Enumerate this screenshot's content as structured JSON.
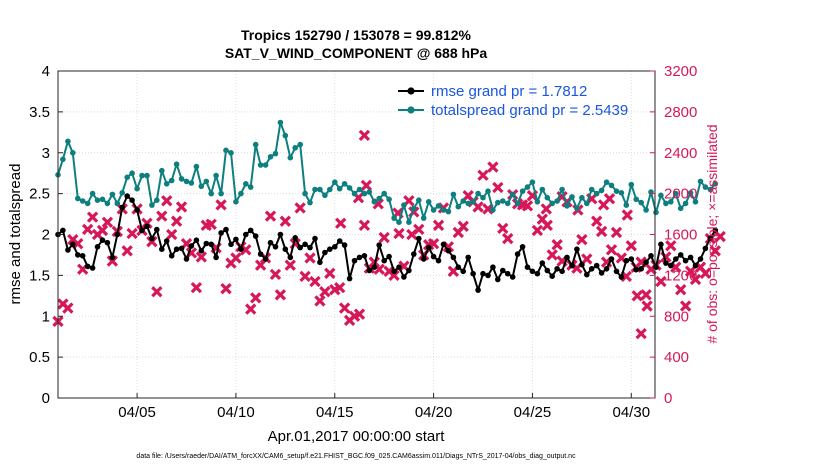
{
  "chart_data": {
    "type": "line",
    "title": "Tropics 152790 / 153078 = 99.812%",
    "subtitle": "SAT_V_WIND_COMPONENT @ 688 hPa",
    "xlabel": "Apr.01,2017 00:00:00 start",
    "ylabel": "rmse and totalspread",
    "y2label": "# of obs: o=possible; ×=assimilated",
    "footnote": "data file: /Users/raeder/DAI/ATM_forcXX/CAM6_setup/f.e21.FHIST_BGC.f09_025.CAM6assim.011/Diags_NTrS_2017-04/obs_diag_output.nc",
    "x_range_days": [
      1,
      31.2
    ],
    "xticks": [
      {
        "day": 5,
        "label": "04/05"
      },
      {
        "day": 10,
        "label": "04/10"
      },
      {
        "day": 15,
        "label": "04/15"
      },
      {
        "day": 20,
        "label": "04/20"
      },
      {
        "day": 25,
        "label": "04/25"
      },
      {
        "day": 30,
        "label": "04/30"
      }
    ],
    "ylim": [
      0,
      4
    ],
    "yticks": [
      "0",
      "0.5",
      "1",
      "1.5",
      "2",
      "2.5",
      "3",
      "3.5",
      "4"
    ],
    "y2lim": [
      0,
      3200
    ],
    "y2ticks": [
      "0",
      "400",
      "800",
      "1200",
      "1600",
      "2000",
      "2400",
      "2800",
      "3200"
    ],
    "grid": true,
    "legend_position": "top-right",
    "colors": {
      "rmse": "#000000",
      "spread": "#0e7f7f",
      "obs": "#d6185a",
      "legend_text": "#1a56e0"
    },
    "time_step_days": 0.25,
    "series": [
      {
        "name": "rmse grand pr = 1.7812",
        "axis": "left",
        "values": [
          2.0,
          2.05,
          1.81,
          1.88,
          1.75,
          1.74,
          1.61,
          1.59,
          1.85,
          1.93,
          1.9,
          1.72,
          2.0,
          2.33,
          2.47,
          2.42,
          2.3,
          2.05,
          2.1,
          1.95,
          2.06,
          1.82,
          1.92,
          1.74,
          1.82,
          1.83,
          1.7,
          1.86,
          1.93,
          1.8,
          1.89,
          1.88,
          1.72,
          2.02,
          2.06,
          1.88,
          1.94,
          1.82,
          2.0,
          2.05,
          1.98,
          1.76,
          1.7,
          1.9,
          1.85,
          2.0,
          1.82,
          1.72,
          1.96,
          1.84,
          1.88,
          1.84,
          1.95,
          1.66,
          1.78,
          1.82,
          1.85,
          1.92,
          1.87,
          1.46,
          1.68,
          1.72,
          1.74,
          1.56,
          1.6,
          1.87,
          1.68,
          1.73,
          1.55,
          1.6,
          1.48,
          1.56,
          1.76,
          1.95,
          1.7,
          1.84,
          1.73,
          1.68,
          1.88,
          1.8,
          1.72,
          1.6,
          1.55,
          1.72,
          1.52,
          1.32,
          1.52,
          1.5,
          1.6,
          1.45,
          1.56,
          1.52,
          1.48,
          1.76,
          1.85,
          1.6,
          1.55,
          1.52,
          1.65,
          1.56,
          1.49,
          1.58,
          1.55,
          1.72,
          1.62,
          1.82,
          1.63,
          1.51,
          1.58,
          1.62,
          1.53,
          1.58,
          1.7,
          1.55,
          1.48,
          1.68,
          1.7,
          1.57,
          1.58,
          1.66,
          1.74,
          1.6,
          1.88,
          1.65,
          1.62,
          1.7,
          1.75,
          1.68,
          1.72,
          1.62,
          1.7,
          1.83,
          1.96,
          2.05
        ]
      },
      {
        "name": "totalspread grand pr = 2.5439",
        "axis": "left",
        "values": [
          2.73,
          2.92,
          3.14,
          3.0,
          2.44,
          2.41,
          2.38,
          2.5,
          2.42,
          2.43,
          2.38,
          2.49,
          2.38,
          2.51,
          2.7,
          2.75,
          2.56,
          2.72,
          2.72,
          2.36,
          2.42,
          2.78,
          2.62,
          2.66,
          2.86,
          2.68,
          2.65,
          2.63,
          2.83,
          2.59,
          2.65,
          2.5,
          2.72,
          2.5,
          3.03,
          3.0,
          2.4,
          2.5,
          2.62,
          2.58,
          3.1,
          2.85,
          2.85,
          2.95,
          2.99,
          3.37,
          3.21,
          2.94,
          3.06,
          3.1,
          2.5,
          2.39,
          2.55,
          2.55,
          2.48,
          2.55,
          2.64,
          2.56,
          2.62,
          2.57,
          2.5,
          2.55,
          2.5,
          2.52,
          2.4,
          2.44,
          2.5,
          2.43,
          2.2,
          2.15,
          2.36,
          2.15,
          2.32,
          2.42,
          2.2,
          2.4,
          2.3,
          2.35,
          2.3,
          2.28,
          2.49,
          2.34,
          2.41,
          2.38,
          2.4,
          2.5,
          2.45,
          2.53,
          2.3,
          2.39,
          2.41,
          2.38,
          2.49,
          2.38,
          2.53,
          2.58,
          2.64,
          2.4,
          2.55,
          2.45,
          2.38,
          2.41,
          2.55,
          2.35,
          2.46,
          2.32,
          2.45,
          2.38,
          2.55,
          2.5,
          2.54,
          2.64,
          2.6,
          2.53,
          2.51,
          2.36,
          2.61,
          2.43,
          2.39,
          2.3,
          2.52,
          2.27,
          2.48,
          2.38,
          2.4,
          2.5,
          2.32,
          2.38,
          2.51,
          2.4,
          2.65,
          2.58,
          2.55,
          2.62
        ]
      }
    ],
    "obs_assimilated": {
      "name": "# of obs assimilated",
      "axis": "right",
      "values": [
        750,
        920,
        880,
        1550,
        1510,
        1260,
        1650,
        1770,
        1600,
        1640,
        1720,
        1340,
        1630,
        1850,
        1440,
        1610,
        1850,
        1640,
        1710,
        1530,
        1040,
        1780,
        1930,
        1600,
        1730,
        1870,
        1510,
        1420,
        1080,
        1380,
        1690,
        1700,
        1470,
        1890,
        1070,
        1320,
        1370,
        1480,
        1450,
        870,
        980,
        1300,
        1370,
        1780,
        1210,
        1010,
        1730,
        1300,
        1510,
        1860,
        1190,
        1370,
        1140,
        950,
        1040,
        1220,
        1060,
        1080,
        880,
        760,
        800,
        820,
        1690,
        1270,
        1330,
        1260,
        1570,
        1240,
        1200,
        1610,
        1290,
        1930,
        1820,
        1650,
        1400,
        1500,
        1510,
        1690,
        1860,
        1480,
        1240,
        1620,
        1680,
        1980,
        1920,
        1870,
        2180,
        1850,
        2260,
        2060,
        1660,
        1560,
        1990,
        1900,
        1890,
        1880,
        1980,
        1640,
        1750,
        1690,
        1400,
        1500,
        1340,
        1920,
        1300,
        1270,
        1550,
        1360,
        1950,
        1730,
        1630,
        1330,
        1450,
        1620,
        1370,
        1190,
        1490,
        1280,
        1330,
        1010,
        1260,
        1300,
        1140,
        1380,
        1490,
        1280,
        1060,
        900,
        1240,
        1160,
        1280,
        1220,
        1560,
        1440,
        1580
      ]
    },
    "obs_extra": [
      {
        "day": 15.3,
        "value": 1710
      },
      {
        "day": 16.5,
        "value": 2570
      },
      {
        "day": 16.2,
        "value": 1960
      },
      {
        "day": 16.6,
        "value": 2080
      },
      {
        "day": 17.2,
        "value": 1900
      },
      {
        "day": 18.2,
        "value": 1810
      },
      {
        "day": 18.9,
        "value": 1600
      },
      {
        "day": 25.7,
        "value": 1850
      },
      {
        "day": 26.5,
        "value": 1970
      },
      {
        "day": 27.3,
        "value": 1840
      },
      {
        "day": 28.6,
        "value": 1890
      },
      {
        "day": 28.9,
        "value": 1950
      },
      {
        "day": 29.8,
        "value": 1790
      },
      {
        "day": 30.3,
        "value": 1000
      },
      {
        "day": 30.5,
        "value": 630
      },
      {
        "day": 30.8,
        "value": 900
      }
    ]
  }
}
